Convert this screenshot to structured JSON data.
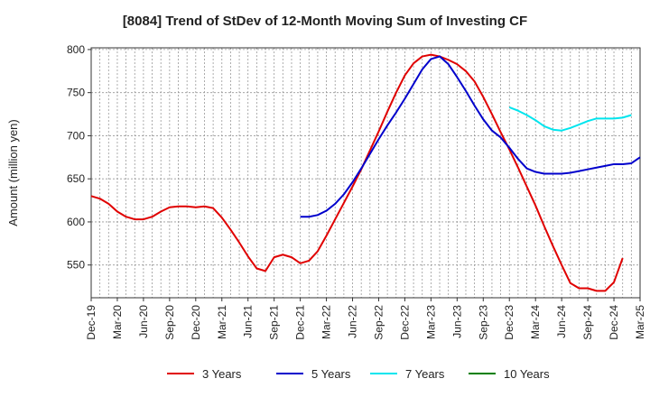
{
  "chart_data": {
    "type": "line",
    "title": "[8084]  Trend of StDev of 12-Month Moving Sum of Investing CF",
    "xlabel": "",
    "ylabel": "Amount (million yen)",
    "ylim": [
      512,
      802
    ],
    "yticks": [
      550,
      600,
      650,
      700,
      750,
      800
    ],
    "xtick_labels": [
      "Dec-19",
      "Mar-20",
      "Jun-20",
      "Sep-20",
      "Dec-20",
      "Mar-21",
      "Jun-21",
      "Sep-21",
      "Dec-21",
      "Mar-22",
      "Jun-22",
      "Sep-22",
      "Dec-22",
      "Mar-23",
      "Jun-23",
      "Sep-23",
      "Dec-23",
      "Mar-24",
      "Jun-24",
      "Sep-24",
      "Dec-24",
      "Mar-25"
    ],
    "grid": true,
    "legend_position": "bottom",
    "series": [
      {
        "name": "3 Years",
        "color": "#e00000",
        "start_index": 0,
        "values": [
          630,
          627,
          621,
          612,
          606,
          603,
          603,
          606,
          612,
          617,
          618,
          618,
          617,
          618,
          616,
          605,
          591,
          576,
          560,
          546,
          543,
          559,
          562,
          559,
          552,
          555,
          566,
          584,
          603,
          622,
          641,
          661,
          683,
          705,
          728,
          750,
          770,
          784,
          792,
          794,
          792,
          788,
          783,
          775,
          763,
          745,
          725,
          704,
          684,
          663,
          641,
          619,
          595,
          572,
          550,
          529,
          523,
          523,
          520,
          520,
          530,
          558
        ],
        "labels": {}
      },
      {
        "name": "5 Years",
        "color": "#0000cc",
        "start_index": 24,
        "values": [
          606,
          606,
          608,
          613,
          621,
          632,
          646,
          662,
          679,
          696,
          712,
          727,
          743,
          760,
          777,
          789,
          792,
          783,
          768,
          752,
          735,
          719,
          706,
          698,
          686,
          673,
          662,
          658,
          656,
          656,
          656,
          657,
          659,
          661,
          663,
          665,
          667,
          667,
          668,
          675
        ]
      },
      {
        "name": "7 Years",
        "color": "#00e5ee",
        "start_index": 48,
        "values": [
          733,
          729,
          724,
          718,
          711,
          707,
          706,
          709,
          713,
          717,
          720,
          720,
          720,
          721,
          724
        ]
      },
      {
        "name": "10 Years",
        "color": "#008000",
        "start_index": 0,
        "values": []
      }
    ]
  }
}
